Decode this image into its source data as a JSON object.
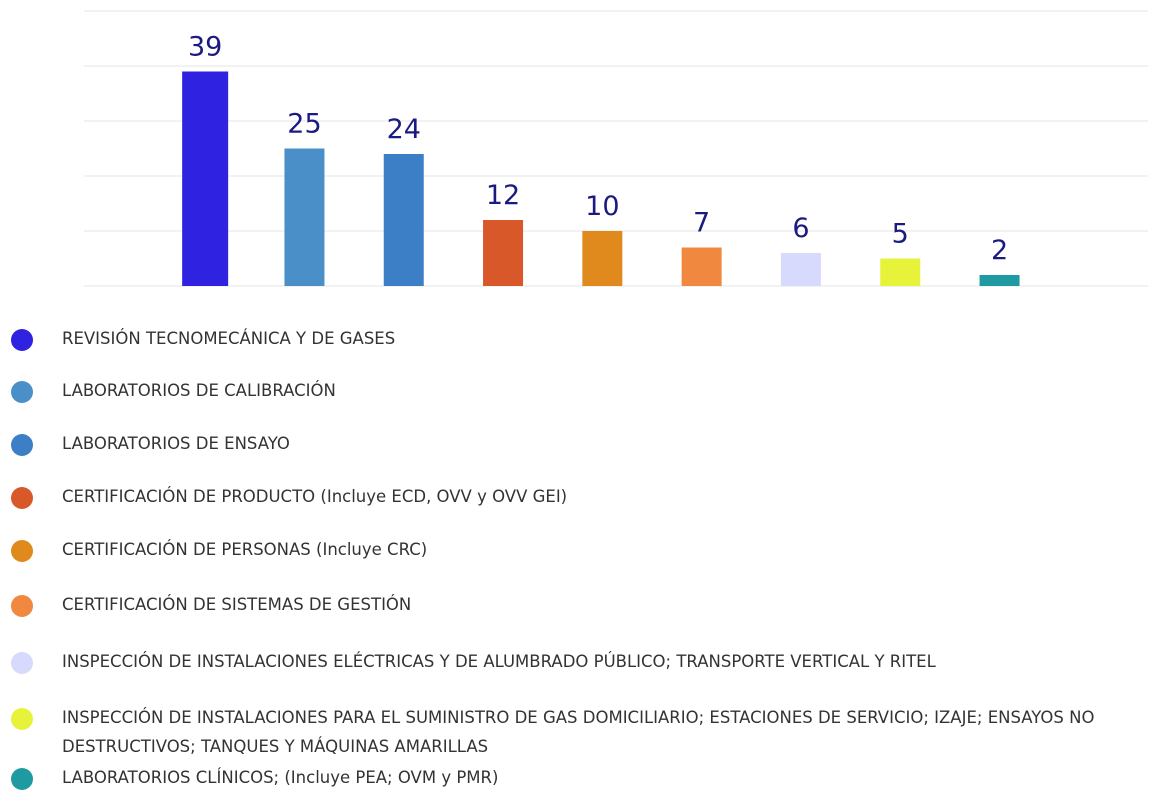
{
  "chart_data": {
    "type": "bar",
    "categories": [
      "REVISIÓN TECNOMECÁNICA Y DE GASES",
      "LABORATORIOS DE CALIBRACIÓN",
      "LABORATORIOS DE ENSAYO",
      "CERTIFICACIÓN DE PRODUCTO (Incluye ECD, OVV y OVV GEI)",
      "CERTIFICACIÓN DE PERSONAS (Incluye CRC)",
      "CERTIFICACIÓN DE SISTEMAS DE GESTIÓN",
      "INSPECCIÓN DE INSTALACIONES ELÉCTRICAS Y DE ALUMBRADO PÚBLICO; TRANSPORTE VERTICAL Y RITEL",
      "INSPECCIÓN DE INSTALACIONES PARA EL SUMINISTRO DE GAS DOMICILIARIO; ESTACIONES DE SERVICIO; IZAJE; ENSAYOS NO DESTRUCTIVOS; TANQUES Y MÁQUINAS AMARILLAS",
      "LABORATORIOS CLÍNICOS; (Incluye PEA; OVM y PMR)"
    ],
    "values": [
      39,
      25,
      24,
      12,
      10,
      7,
      6,
      5,
      2
    ],
    "colors": [
      "#2f22e0",
      "#4a8fc8",
      "#3d7fc7",
      "#d9582a",
      "#e0891c",
      "#f08840",
      "#d7dafc",
      "#e6f33a",
      "#1f9aa0"
    ],
    "ylim": [
      0,
      50
    ],
    "yticks": [
      0,
      10,
      20,
      30,
      40,
      50
    ],
    "grid": true
  }
}
